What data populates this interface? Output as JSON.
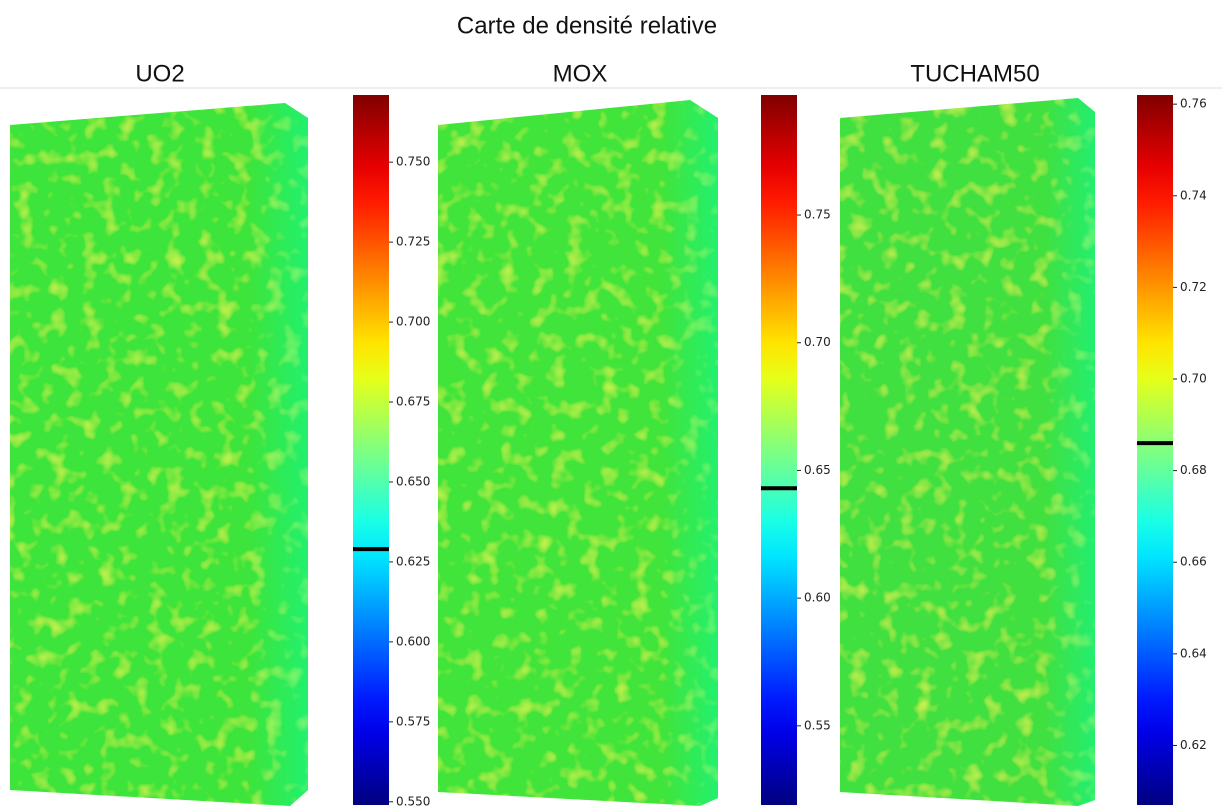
{
  "title": "Carte de densité relative",
  "chart_data": [
    {
      "type": "heatmap",
      "title": "UO2",
      "colormap": "jet",
      "clim": [
        0.549,
        0.771
      ],
      "cticks": [
        {
          "value": 0.55,
          "label": "0.550"
        },
        {
          "value": 0.575,
          "label": "0.575"
        },
        {
          "value": 0.6,
          "label": "0.600"
        },
        {
          "value": 0.625,
          "label": "0.625"
        },
        {
          "value": 0.65,
          "label": "0.650"
        },
        {
          "value": 0.675,
          "label": "0.675"
        },
        {
          "value": 0.7,
          "label": "0.700"
        },
        {
          "value": 0.725,
          "label": "0.725"
        },
        {
          "value": 0.75,
          "label": "0.750"
        }
      ],
      "marker": 0.629
    },
    {
      "type": "heatmap",
      "title": "MOX",
      "colormap": "jet",
      "clim": [
        0.519,
        0.797
      ],
      "cticks": [
        0.55,
        {
          "value": 0.6,
          "label": "0.60"
        },
        0.65,
        {
          "value": 0.7,
          "label": "0.70"
        },
        0.75
      ],
      "marker": 0.643
    },
    {
      "type": "heatmap",
      "title": "TUCHAM50",
      "colormap": "jet",
      "clim": [
        0.607,
        0.762
      ],
      "cticks": [
        0.62,
        0.64,
        0.66,
        0.68,
        {
          "value": 0.7,
          "label": "0.70"
        },
        0.72,
        0.74,
        0.76
      ],
      "marker": 0.686
    }
  ]
}
